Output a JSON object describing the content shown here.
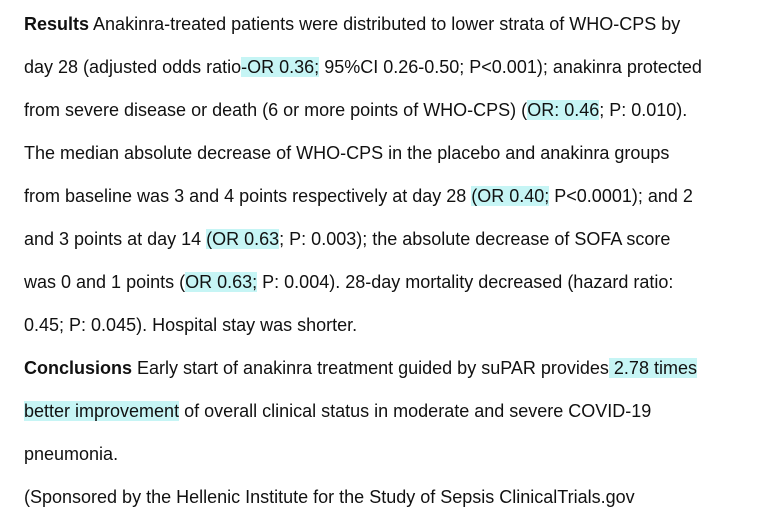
{
  "results": {
    "heading": "Results",
    "l1": " Anakinra-treated patients were distributed to lower strata of WHO-CPS by",
    "l2a": "day 28 (adjusted odds ratio",
    "l2b": "-OR 0.36;",
    "l2c": " 95%CI 0.26-0.50; P<0.001); anakinra protected",
    "l3a": "from severe disease or death (6 or more points of WHO-CPS) (",
    "l3b": "OR: 0.46",
    "l3c": "; P: 0.010).",
    "l4": "The median absolute decrease of WHO-CPS in the placebo and anakinra groups",
    "l5a": "from baseline was 3 and 4 points respectively at day 28 ",
    "l5b": "(OR 0.40;",
    "l5c": " P<0.0001); and 2",
    "l6a": "and 3 points at day 14 ",
    "l6b": "(OR 0.63",
    "l6c": "; P: 0.003); the absolute decrease of SOFA score",
    "l7a": "was 0 and 1 points (",
    "l7b": "OR 0.63;",
    "l7c": " P: 0.004). 28-day mortality decreased (hazard ratio:",
    "l8": "0.45; P: 0.045). Hospital stay was shorter."
  },
  "conclusions": {
    "heading": "Conclusions",
    "l1a": " Early start of anakinra treatment guided by suPAR provides",
    "l1b": " 2.78 times",
    "l2a": "better improvement",
    "l2b": " of overall clinical status in moderate and severe COVID-19",
    "l3": "pneumonia."
  },
  "sponsor": {
    "l1": "(Sponsored by the Hellenic Institute for the Study of Sepsis ClinicalTrials.gov"
  }
}
